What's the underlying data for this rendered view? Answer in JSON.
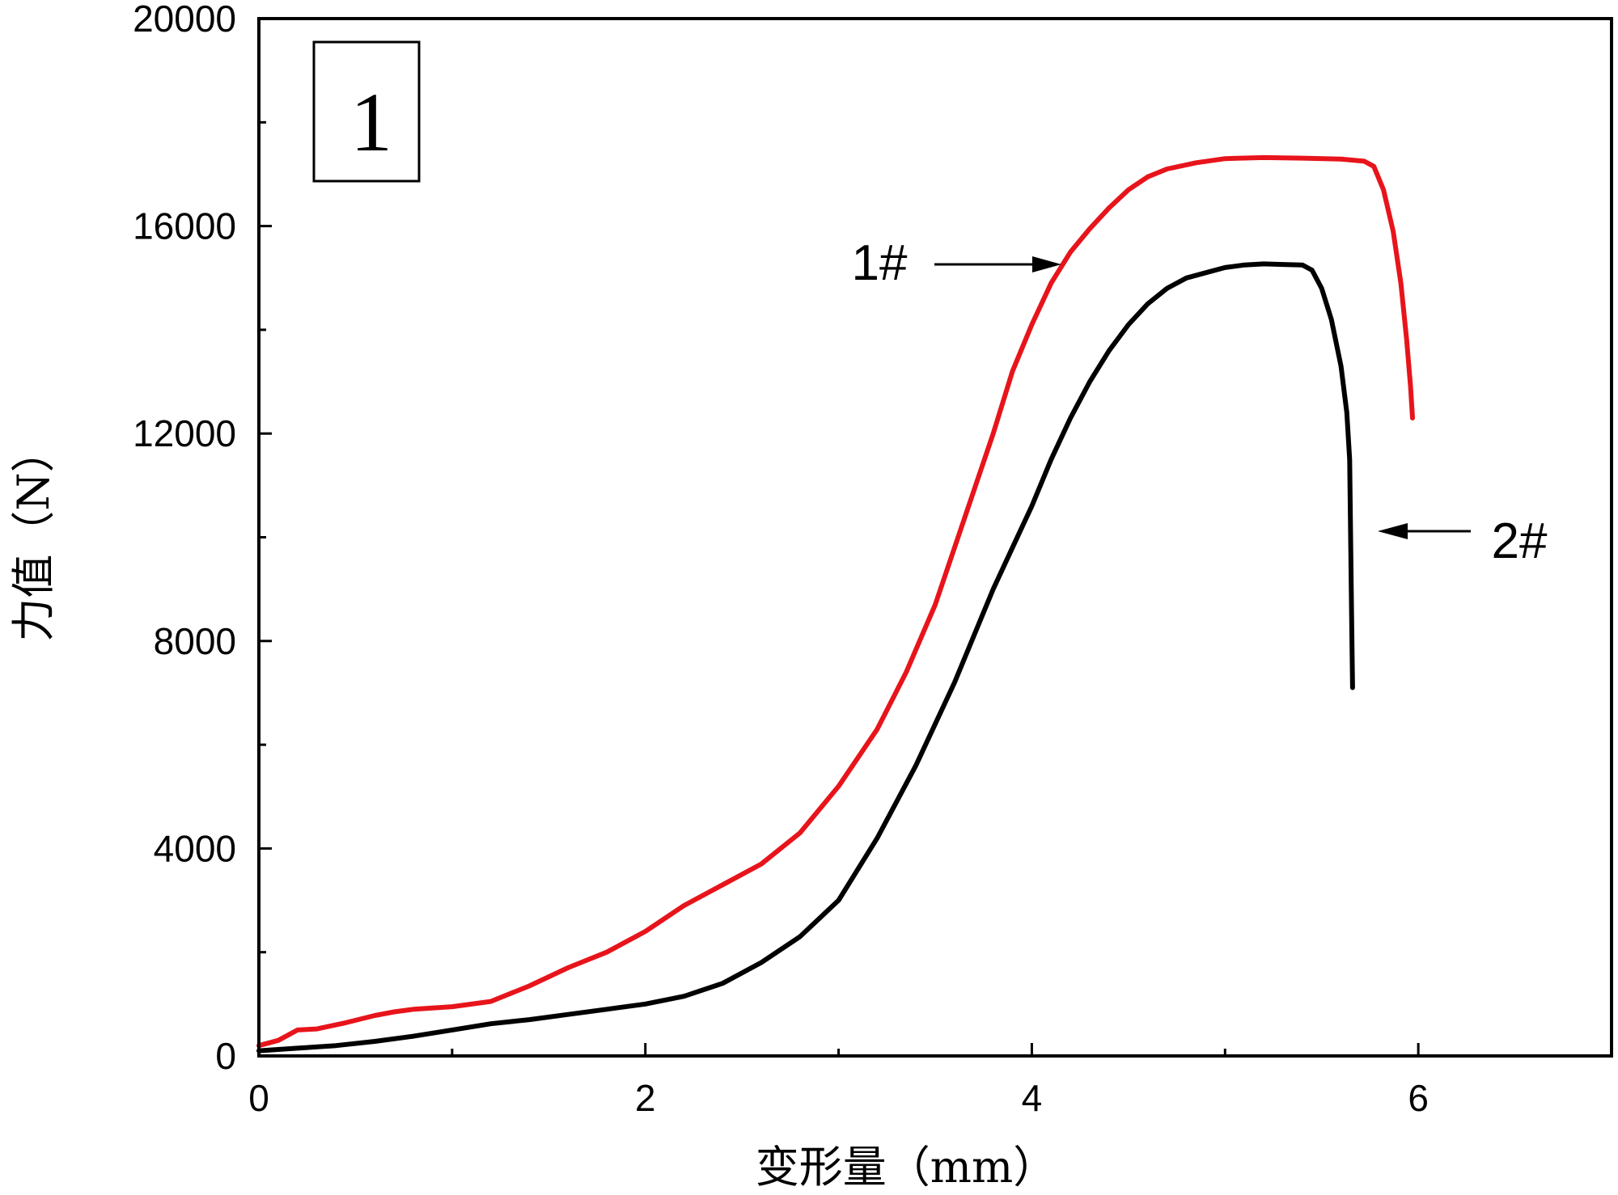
{
  "chart_data": {
    "type": "line",
    "title": "",
    "panel_label": "1",
    "xlabel": "变形量（mm）",
    "ylabel": "力值（N）",
    "xlim": [
      0,
      7
    ],
    "ylim": [
      0,
      20000
    ],
    "x_ticks": [
      0,
      2,
      4,
      6
    ],
    "x_minor_ticks": [
      1,
      3,
      5
    ],
    "y_ticks": [
      0,
      4000,
      8000,
      12000,
      16000,
      20000
    ],
    "y_minor_ticks": [
      2000,
      6000,
      10000,
      14000,
      18000
    ],
    "grid": false,
    "series": [
      {
        "name": "1#",
        "color": "#e8141b",
        "x": [
          0,
          0.1,
          0.2,
          0.3,
          0.45,
          0.6,
          0.7,
          0.8,
          1.0,
          1.2,
          1.4,
          1.6,
          1.8,
          2.0,
          2.2,
          2.4,
          2.6,
          2.8,
          3.0,
          3.2,
          3.35,
          3.5,
          3.6,
          3.7,
          3.8,
          3.9,
          4.0,
          4.1,
          4.2,
          4.3,
          4.4,
          4.5,
          4.6,
          4.7,
          4.85,
          5.0,
          5.2,
          5.4,
          5.6,
          5.72,
          5.77,
          5.82,
          5.87,
          5.91,
          5.94,
          5.96,
          5.97
        ],
        "y": [
          200,
          300,
          500,
          520,
          640,
          780,
          850,
          900,
          950,
          1050,
          1350,
          1700,
          2000,
          2400,
          2900,
          3300,
          3700,
          4300,
          5200,
          6300,
          7400,
          8700,
          9800,
          10900,
          12000,
          13200,
          14100,
          14900,
          15500,
          15950,
          16350,
          16700,
          16950,
          17100,
          17220,
          17300,
          17320,
          17310,
          17290,
          17250,
          17150,
          16700,
          15900,
          14900,
          13800,
          12900,
          12300
        ]
      },
      {
        "name": "2#",
        "color": "#000000",
        "x": [
          0,
          0.2,
          0.4,
          0.6,
          0.8,
          1.0,
          1.2,
          1.4,
          1.6,
          1.8,
          2.0,
          2.2,
          2.4,
          2.6,
          2.8,
          3.0,
          3.2,
          3.4,
          3.6,
          3.8,
          3.9,
          4.0,
          4.1,
          4.2,
          4.3,
          4.4,
          4.5,
          4.6,
          4.7,
          4.8,
          4.9,
          5.0,
          5.1,
          5.2,
          5.3,
          5.4,
          5.45,
          5.5,
          5.55,
          5.6,
          5.63,
          5.645,
          5.65,
          5.655,
          5.66
        ],
        "y": [
          100,
          150,
          200,
          280,
          380,
          500,
          620,
          700,
          800,
          900,
          1000,
          1150,
          1400,
          1800,
          2300,
          3000,
          4200,
          5600,
          7200,
          9000,
          9800,
          10600,
          11500,
          12300,
          13000,
          13600,
          14100,
          14500,
          14800,
          15000,
          15100,
          15200,
          15250,
          15270,
          15260,
          15250,
          15150,
          14800,
          14200,
          13300,
          12400,
          11500,
          10000,
          8500,
          7100
        ]
      }
    ],
    "annotations": [
      {
        "text": "1#",
        "target": "1#"
      },
      {
        "text": "2#",
        "target": "2#"
      }
    ]
  }
}
